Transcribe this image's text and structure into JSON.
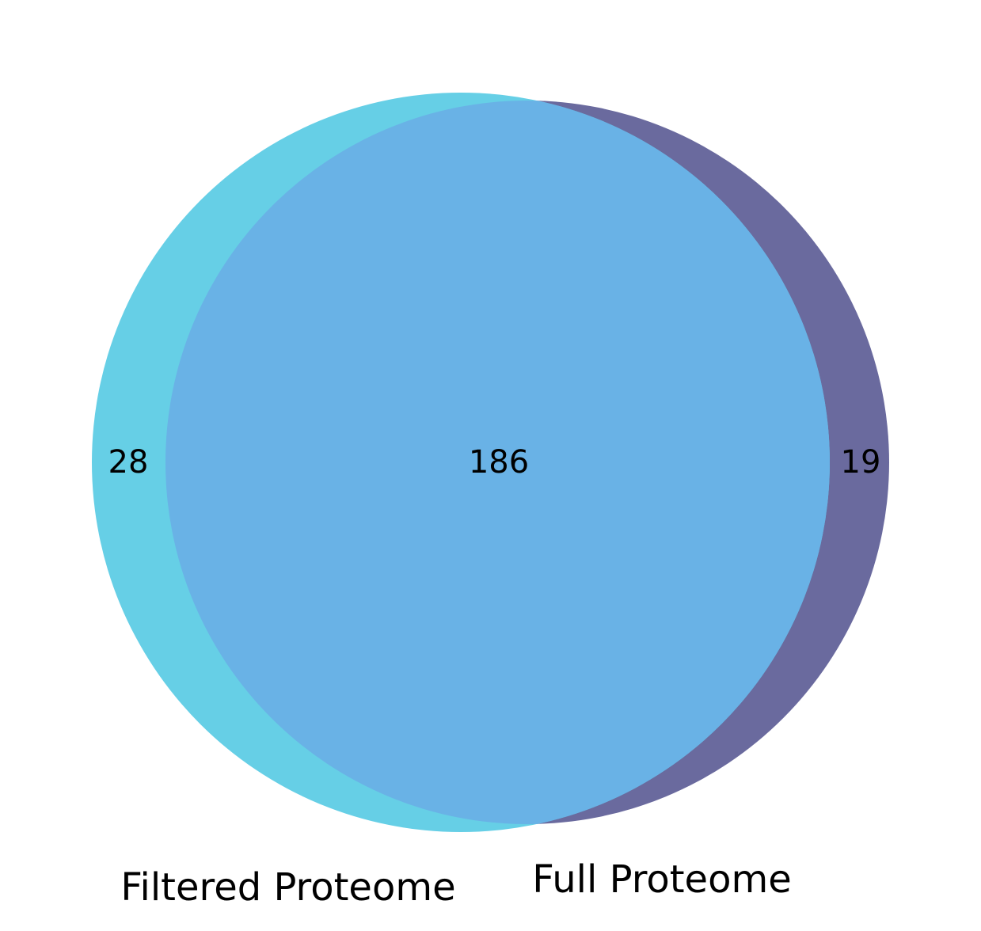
{
  "venn": {
    "sets": [
      {
        "name": "Filtered Proteome",
        "color": "#66cfe6",
        "only_count": "28"
      },
      {
        "name": "Full Proteome",
        "color": "#6a6a9e",
        "only_count": "19"
      }
    ],
    "intersection_count": "186",
    "intersection_color": "#69b2e6"
  }
}
